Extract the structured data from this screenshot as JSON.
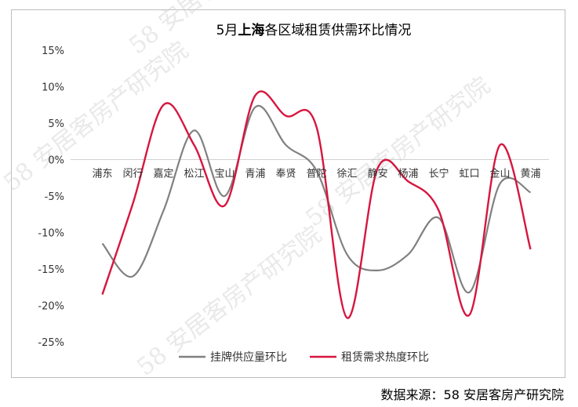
{
  "chart_data": {
    "type": "line",
    "title_parts": [
      "5月",
      "上海",
      "各区域租赁供需环比情况"
    ],
    "xlabel": "",
    "ylabel": "",
    "categories": [
      "浦东",
      "闵行",
      "嘉定",
      "松江",
      "宝山",
      "青浦",
      "奉贤",
      "普陀",
      "徐汇",
      "静安",
      "杨浦",
      "长宁",
      "虹口",
      "金山",
      "黄浦"
    ],
    "ylim": [
      -0.25,
      0.15
    ],
    "yticks": [
      0.15,
      0.1,
      0.05,
      0.0,
      -0.05,
      -0.1,
      -0.15,
      -0.2,
      -0.25
    ],
    "ytick_labels": [
      "15%",
      "10%",
      "5%",
      "0%",
      "-5%",
      "-10%",
      "-15%",
      "-20%",
      "-25%"
    ],
    "grid": false,
    "legend_position": "bottom",
    "series": [
      {
        "name": "挂牌供应量环比",
        "color": "#808080",
        "values": [
          -0.115,
          -0.16,
          -0.07,
          0.04,
          -0.05,
          0.072,
          0.02,
          -0.015,
          -0.13,
          -0.152,
          -0.13,
          -0.08,
          -0.182,
          -0.033,
          -0.045
        ]
      },
      {
        "name": "租赁需求热度环比",
        "color": "#d6163f",
        "values": [
          -0.185,
          -0.06,
          0.075,
          0.02,
          -0.063,
          0.088,
          0.06,
          0.045,
          -0.217,
          -0.012,
          -0.03,
          -0.07,
          -0.213,
          0.02,
          -0.123
        ]
      }
    ]
  },
  "source_text": "数据来源：58 安居客房产研究院",
  "watermark_text": "58 安居客房产研究院"
}
